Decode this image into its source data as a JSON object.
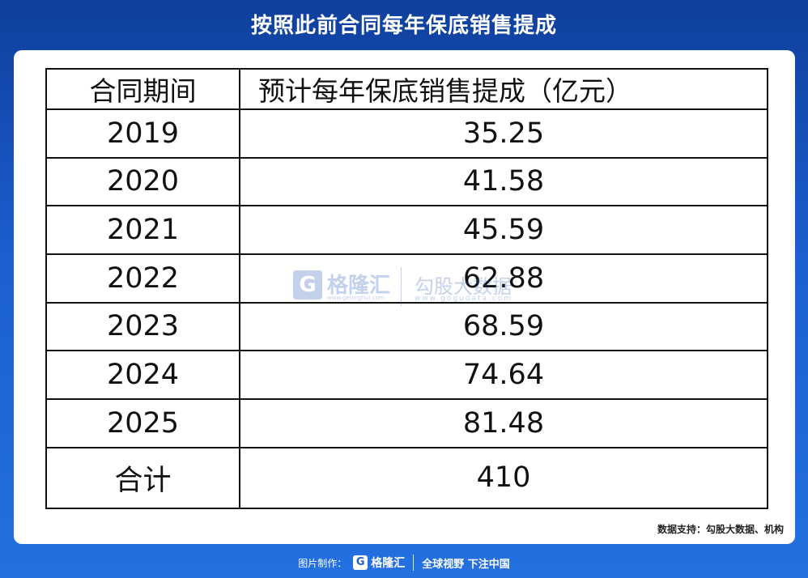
{
  "title": "按照此前合同每年保底销售提成",
  "table": {
    "headers": [
      "合同期间",
      "预计每年保底销售提成（亿元）"
    ],
    "rows": [
      {
        "period": "2019",
        "value": "35.25"
      },
      {
        "period": "2020",
        "value": "41.58"
      },
      {
        "period": "2021",
        "value": "45.59"
      },
      {
        "period": "2022",
        "value": "62.88"
      },
      {
        "period": "2023",
        "value": "68.59"
      },
      {
        "period": "2024",
        "value": "74.64"
      },
      {
        "period": "2025",
        "value": "81.48"
      },
      {
        "period": "合计",
        "value": "410"
      }
    ]
  },
  "watermark": {
    "logo_letter": "G",
    "name1": "格隆汇",
    "url1": "www.gelonghui.com",
    "name2": "勾股大数据",
    "url2": "www.gogudata.com"
  },
  "source": "数据支持：勾股大数据、机构",
  "footer": {
    "made_by": "图片制作：",
    "logo_letter": "G",
    "brand": "格隆汇",
    "slogan": "全球视野 下注中国"
  },
  "colors": {
    "background": "#1c5fd0",
    "card": "#ffffff",
    "table_border": "#111111"
  }
}
